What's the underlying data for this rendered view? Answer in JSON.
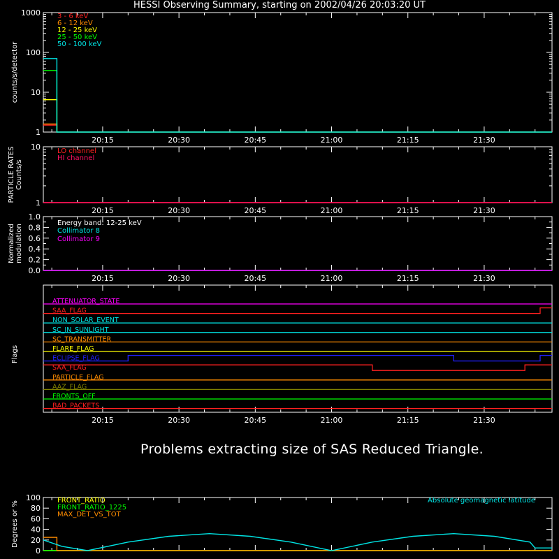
{
  "title": "HESSI Observing Summary, starting on 2002/04/26 20:03:20 UT",
  "message": "Problems extracting size of SAS Reduced Triangle.",
  "time_ticks": [
    "20:15",
    "20:30",
    "20:45",
    "21:00",
    "21:15",
    "21:30"
  ],
  "chart_data": [
    {
      "id": "count-rates",
      "type": "line",
      "ylabel": "counts/s/detector",
      "yscale": "log",
      "ylim": [
        1,
        1000
      ],
      "yticks": [
        "1",
        "10",
        "100",
        "1000"
      ],
      "xrange": [
        "20:03:20",
        "21:43:20"
      ],
      "series": [
        {
          "name": "3 - 6 keV",
          "color": "#ff2020",
          "x": [
            "20:03:20",
            "20:06:00",
            "20:06:00"
          ],
          "y": [
            1.5,
            1.5,
            1
          ]
        },
        {
          "name": "6 - 12 keV",
          "color": "#ff8c00",
          "x": [
            "20:03:20",
            "20:06:00",
            "20:06:00"
          ],
          "y": [
            1.6,
            1.6,
            1
          ]
        },
        {
          "name": "12 - 25 keV",
          "color": "#ffff00",
          "x": [
            "20:03:20",
            "20:06:00",
            "20:06:00",
            "21:43:20"
          ],
          "y": [
            6.5,
            6.5,
            1,
            1
          ]
        },
        {
          "name": "25 - 50 keV",
          "color": "#00ff00",
          "x": [
            "20:03:20",
            "20:06:00",
            "20:06:00"
          ],
          "y": [
            35,
            35,
            1
          ]
        },
        {
          "name": "50 - 100 keV",
          "color": "#00e5e5",
          "x": [
            "20:03:20",
            "20:06:00",
            "20:06:00",
            "21:43:20"
          ],
          "y": [
            70,
            70,
            1,
            1
          ]
        }
      ]
    },
    {
      "id": "particle-rates",
      "type": "line",
      "ylabel": [
        "PARTICLE RATES",
        "Counts/s"
      ],
      "yscale": "log",
      "ylim": [
        1,
        10
      ],
      "yticks": [
        "1",
        "10"
      ],
      "series": [
        {
          "name": "LO channel",
          "color": "#ff2020",
          "x": [
            "20:03:20",
            "21:43:20"
          ],
          "y": [
            1,
            1
          ]
        },
        {
          "name": "HI channel",
          "color": "#ff1060",
          "x": [
            "20:03:20",
            "21:43:20"
          ],
          "y": [
            1,
            1
          ]
        }
      ]
    },
    {
      "id": "modulation",
      "type": "line",
      "ylabel": [
        "Normalized",
        "modulation"
      ],
      "ylim": [
        0,
        1
      ],
      "yticks": [
        "0.0",
        "0.2",
        "0.4",
        "0.6",
        "0.8",
        "1.0"
      ],
      "annotation": "Energy band: 12-25 keV",
      "series": [
        {
          "name": "Collimator 8",
          "color": "#00e5e5",
          "x": [
            "20:03:20",
            "21:43:20"
          ],
          "y": [
            0,
            0
          ]
        },
        {
          "name": "Collimator 9",
          "color": "#ff00ff",
          "x": [
            "20:03:20",
            "21:43:20"
          ],
          "y": [
            0,
            0
          ]
        }
      ]
    },
    {
      "id": "flags",
      "type": "line",
      "ylabel": "Flags",
      "flags": [
        {
          "name": "ATTENUATOR_STATE",
          "color": "#ff00ff",
          "segments": [
            [
              "20:03:20",
              "21:43:20",
              0
            ]
          ]
        },
        {
          "name": "SAA_FLAG",
          "color": "#ff2020",
          "segments": [
            [
              "20:03:20",
              "21:41:00",
              0
            ],
            [
              "21:41:00",
              "21:43:20",
              1
            ]
          ]
        },
        {
          "name": "NON_SOLAR_EVENT",
          "color": "#00e5e5",
          "segments": [
            [
              "20:03:20",
              "21:43:20",
              0
            ]
          ]
        },
        {
          "name": "SC_IN_SUNLIGHT",
          "color": "#00e5e5",
          "segments": [
            [
              "20:03:20",
              "21:43:20",
              0
            ]
          ]
        },
        {
          "name": "SC_TRANSMITTER",
          "color": "#ff8c00",
          "segments": [
            [
              "20:03:20",
              "21:43:20",
              0
            ]
          ]
        },
        {
          "name": "FLARE_FLAG",
          "color": "#ffff00",
          "segments": [
            [
              "20:03:20",
              "21:43:20",
              0
            ]
          ]
        },
        {
          "name": "ECLIPSE_FLAG",
          "color": "#2020ff",
          "segments": [
            [
              "20:03:20",
              "20:20:00",
              0
            ],
            [
              "20:20:00",
              "21:24:00",
              1
            ],
            [
              "21:24:00",
              "21:41:00",
              0
            ],
            [
              "21:41:00",
              "21:43:20",
              1
            ]
          ]
        },
        {
          "name": "SAA_FLAG",
          "color": "#ff2020",
          "segments": [
            [
              "20:03:20",
              "21:08:00",
              1
            ],
            [
              "21:08:00",
              "21:38:00",
              0
            ],
            [
              "21:38:00",
              "21:43:20",
              1
            ]
          ]
        },
        {
          "name": "PARTICLE_FLAG",
          "color": "#ff8c00",
          "segments": [
            [
              "20:03:20",
              "21:43:20",
              0
            ]
          ]
        },
        {
          "name": "AAZ_FLAG",
          "color": "#808000",
          "segments": [
            [
              "20:03:20",
              "21:43:20",
              0
            ]
          ]
        },
        {
          "name": "FRONTS_OFF",
          "color": "#00ff00",
          "segments": [
            [
              "20:03:20",
              "21:43:20",
              0
            ]
          ]
        },
        {
          "name": "BAD_PACKETS",
          "color": "#ff2020",
          "segments": [
            [
              "20:03:20",
              "21:43:20",
              0
            ]
          ]
        }
      ]
    },
    {
      "id": "ratios",
      "type": "line",
      "ylabel": "Degrees or %",
      "ylim": [
        0,
        100
      ],
      "yticks": [
        "0",
        "20",
        "40",
        "60",
        "80",
        "100"
      ],
      "annotation": "Absolute geomagnetic latitude",
      "annotation_color": "#00e5e5",
      "series": [
        {
          "name": "FRONT_RATIO",
          "color": "#ffff00",
          "x": [
            "20:03:20",
            "21:43:20"
          ],
          "y": [
            0,
            0
          ]
        },
        {
          "name": "FRONT_RATIO_1225",
          "color": "#00ff00",
          "x": [
            "20:03:20",
            "21:43:20"
          ],
          "y": [
            0,
            0
          ]
        },
        {
          "name": "MAX_DET_VS_TOT",
          "color": "#ff8c00",
          "x": [
            "20:03:20",
            "20:06:00",
            "20:06:00",
            "21:43:20"
          ],
          "y": [
            25,
            25,
            0,
            0
          ]
        },
        {
          "name": "Absolute geomagnetic latitude",
          "color": "#00e5e5",
          "x": [
            "20:03:20",
            "20:07:00",
            "20:12:00",
            "20:20:00",
            "20:28:00",
            "20:36:00",
            "20:44:00",
            "20:52:00",
            "21:00:00",
            "21:08:00",
            "21:16:00",
            "21:24:00",
            "21:32:00",
            "21:39:00",
            "21:40:00",
            "21:43:20"
          ],
          "y": [
            20,
            8,
            0,
            16,
            27,
            32,
            27,
            16,
            0,
            16,
            27,
            32,
            27,
            16,
            5,
            5
          ]
        }
      ]
    }
  ]
}
